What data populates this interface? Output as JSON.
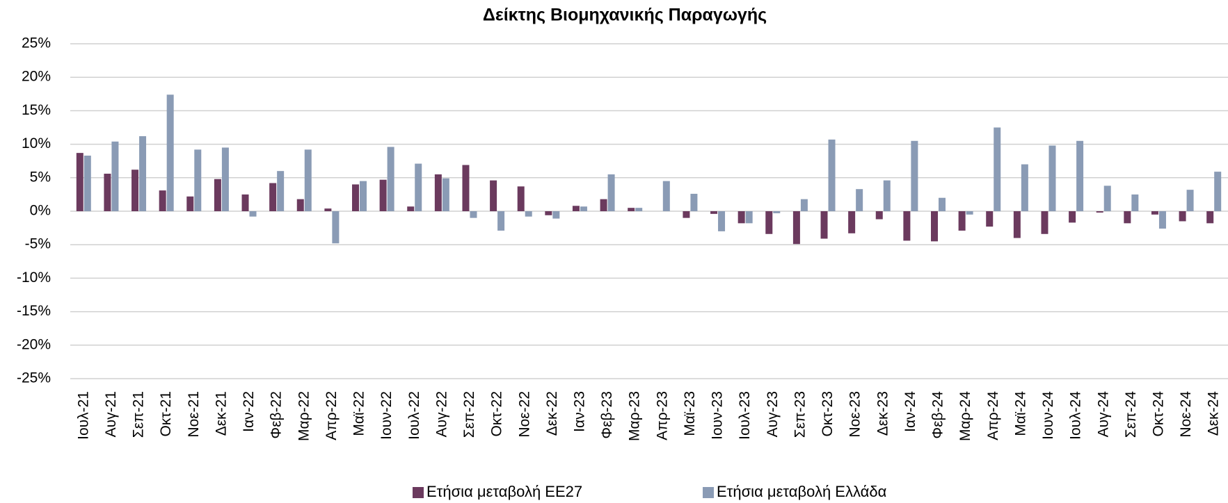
{
  "chart_data": {
    "type": "bar",
    "title": "Δείκτης Βιομηχανικής Παραγωγής",
    "categories": [
      "Ιουλ-21",
      "Αυγ-21",
      "Σεπ-21",
      "Οκτ-21",
      "Νοε-21",
      "Δεκ-21",
      "Ιαν-22",
      "Φεβ-22",
      "Μαρ-22",
      "Απρ-22",
      "Μαϊ-22",
      "Ιουν-22",
      "Ιουλ-22",
      "Αυγ-22",
      "Σεπ-22",
      "Οκτ-22",
      "Νοε-22",
      "Δεκ-22",
      "Ιαν-23",
      "Φεβ-23",
      "Μαρ-23",
      "Απρ-23",
      "Μαϊ-23",
      "Ιουν-23",
      "Ιουλ-23",
      "Αυγ-23",
      "Σεπ-23",
      "Οκτ-23",
      "Νοε-23",
      "Δεκ-23",
      "Ιαν-24",
      "Φεβ-24",
      "Μαρ-24",
      "Απρ-24",
      "Μαϊ-24",
      "Ιουν-24",
      "Ιουλ-24",
      "Αυγ-24",
      "Σεπ-24",
      "Οκτ-24",
      "Νοε-24",
      "Δεκ-24"
    ],
    "series": [
      {
        "name": "Ετήσια μεταβολή ΕΕ27",
        "color": "#6b3a5e",
        "values": [
          8.7,
          5.6,
          6.2,
          3.1,
          2.2,
          4.8,
          2.5,
          4.2,
          1.8,
          0.4,
          4.0,
          4.7,
          0.7,
          5.5,
          6.9,
          4.6,
          3.7,
          -0.6,
          0.8,
          1.8,
          0.5,
          0.0,
          -1.0,
          -0.4,
          -1.8,
          -3.4,
          -4.9,
          -4.1,
          -3.3,
          -1.2,
          -4.4,
          -4.5,
          -2.9,
          -2.3,
          -4.0,
          -3.4,
          -1.7,
          -0.2,
          -1.8,
          -0.5,
          -1.5,
          -1.8
        ]
      },
      {
        "name": "Ετήσια μεταβολή Ελλάδα",
        "color": "#8a9bb5",
        "values": [
          8.3,
          10.4,
          11.2,
          17.4,
          9.2,
          9.5,
          -0.8,
          6.0,
          9.2,
          -4.8,
          4.5,
          9.6,
          7.1,
          4.9,
          -1.0,
          -2.9,
          -0.8,
          -1.1,
          0.7,
          5.5,
          0.5,
          4.5,
          2.6,
          -3.0,
          -1.8,
          -0.3,
          1.8,
          10.7,
          3.3,
          4.6,
          10.5,
          2.0,
          -0.5,
          12.5,
          7.0,
          9.8,
          10.5,
          3.8,
          2.5,
          -2.6,
          3.2,
          5.9
        ]
      }
    ],
    "ylim": [
      -25,
      25
    ],
    "yticks": [
      {
        "value": -25,
        "label": "-25%"
      },
      {
        "value": -20,
        "label": "-20%"
      },
      {
        "value": -15,
        "label": "-15%"
      },
      {
        "value": -10,
        "label": "-10%"
      },
      {
        "value": -5,
        "label": "-5%"
      },
      {
        "value": 0,
        "label": "0%"
      },
      {
        "value": 5,
        "label": "5%"
      },
      {
        "value": 10,
        "label": "10%"
      },
      {
        "value": 15,
        "label": "15%"
      },
      {
        "value": 20,
        "label": "20%"
      },
      {
        "value": 25,
        "label": "25%"
      }
    ],
    "grid": true,
    "legend": "bottom"
  }
}
